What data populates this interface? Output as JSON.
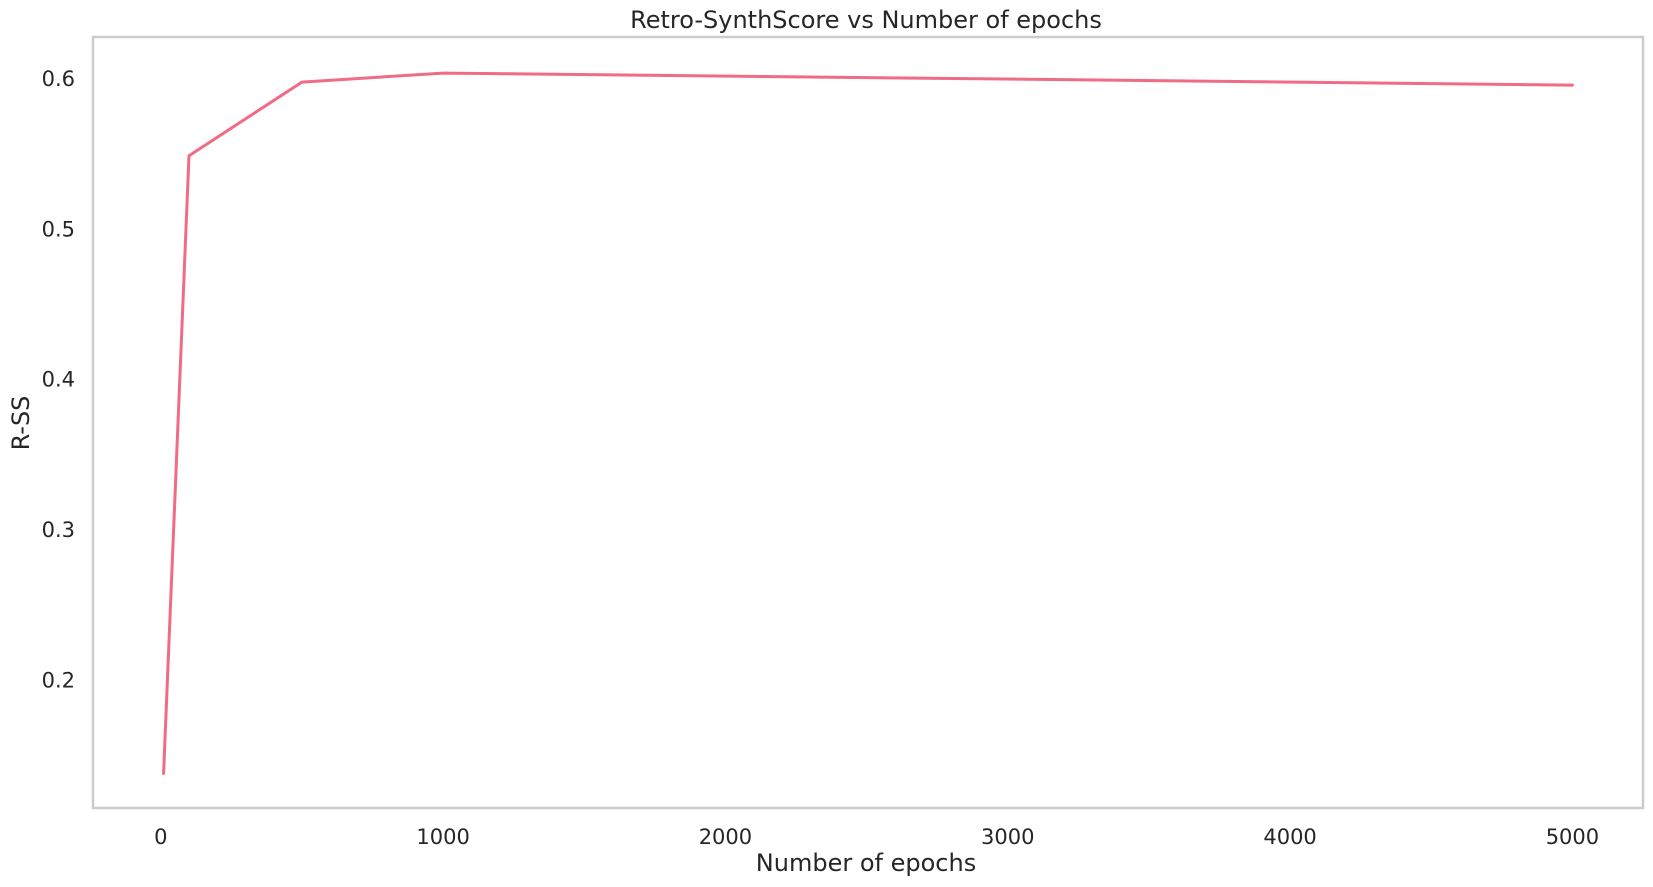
{
  "chart_data": {
    "type": "line",
    "title": "Retro-SynthScore vs Number of epochs",
    "xlabel": "Number of epochs",
    "ylabel": "R-SS",
    "xlim": [
      -240,
      5250
    ],
    "ylim": [
      0.115,
      0.628
    ],
    "xticks": [
      0,
      1000,
      2000,
      3000,
      4000,
      5000
    ],
    "xtick_labels": [
      "0",
      "1000",
      "2000",
      "3000",
      "4000",
      "5000"
    ],
    "yticks": [
      0.2,
      0.3,
      0.4,
      0.5,
      0.6
    ],
    "ytick_labels": [
      "0.2",
      "0.3",
      "0.4",
      "0.5",
      "0.6"
    ],
    "grid": false,
    "series": [
      {
        "color": "#f06b84",
        "x": [
          10,
          100,
          500,
          1000,
          5000
        ],
        "y": [
          0.138,
          0.549,
          0.598,
          0.604,
          0.596
        ]
      }
    ]
  }
}
